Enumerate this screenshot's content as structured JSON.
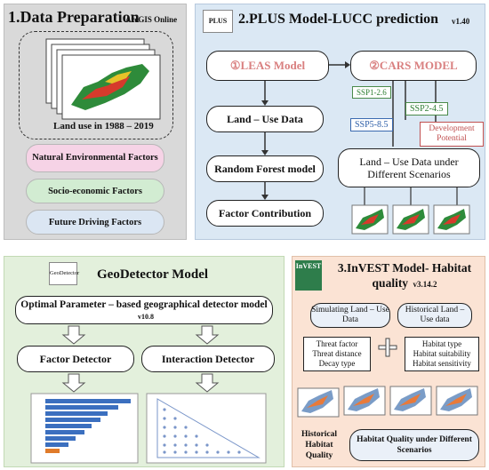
{
  "panel1": {
    "title": "1.Data Preparation",
    "title_sub": "ArcGIS Online",
    "map_caption": "Land use in 1988 – 2019",
    "factors": [
      "Natural Environmental Factors",
      "Socio-economic Factors",
      "Future Driving Factors"
    ],
    "colors": {
      "bg": "#d9d9d9",
      "natural": "#f6d3e6",
      "socio": "#d2ecd2",
      "future": "#dbe6f3"
    }
  },
  "panel2": {
    "title": "2.PLUS Model-LUCC prediction",
    "version": "v1.40",
    "logo_text": "PLUS",
    "leas": "①LEAS Model",
    "cars": "②CARS MODEL",
    "steps": [
      "Land – Use Data",
      "Random Forest model",
      "Factor Contribution"
    ],
    "ssp": [
      "SSP1-2.6",
      "SSP2-4.5",
      "SSP5-8.5"
    ],
    "development": "Development Potential",
    "scenarios": "Land – Use Data under Different Scenarios",
    "colors": {
      "bg": "#dbe8f4",
      "accent": "#d98080"
    }
  },
  "panel3": {
    "logo_text": "GeoDetector",
    "title": "GeoDetector Model",
    "optimal": "Optimal Parameter – based geographical detector model",
    "version": "v10.8",
    "factor_detector": "Factor Detector",
    "interaction_detector": "Interaction Detector",
    "colors": {
      "bg": "#e3f0dc"
    }
  },
  "panel4": {
    "logo_text": "InVEST",
    "title": "3.InVEST Model- Habitat quality",
    "version": "v3.14.2",
    "simulating": "Simulating Land – Use Data",
    "historical": "Historical Land – Use data",
    "threats": [
      "Threat factor",
      "Threat distance",
      "Decay type"
    ],
    "habitat": [
      "Habitat type",
      "Habitat suitability",
      "Habitat sensitivity"
    ],
    "hist_quality": "Historical Habitat Quality",
    "diff_quality": "Habitat Quality under Different Scenarios",
    "colors": {
      "bg": "#fbe3d4"
    }
  }
}
